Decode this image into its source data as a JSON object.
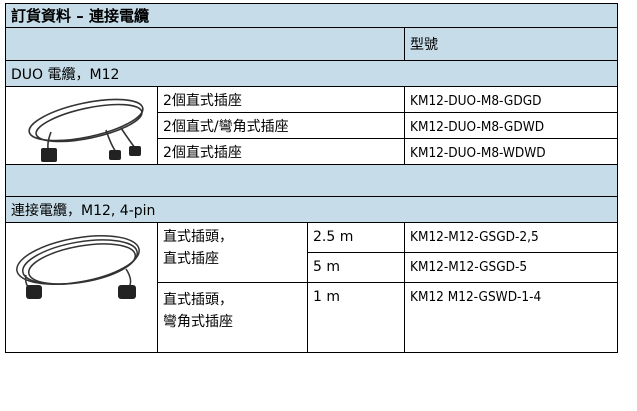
{
  "title": "訂貨資料 – 連接電纜",
  "header": {
    "part_number": "型號"
  },
  "sections": [
    {
      "title": "DUO 電纜，M12",
      "rows": [
        {
          "description": "2個直式插座",
          "part_number": "KM12-DUO-M8-GDGD"
        },
        {
          "description": "2個直式/彎角式插座",
          "part_number": "KM12-DUO-M8-GDWD"
        },
        {
          "description": "2個直式插座",
          "part_number": "KM12-DUO-M8-WDWD"
        }
      ]
    },
    {
      "title": "連接電纜，M12, 4-pin",
      "groups": [
        {
          "description": [
            "直式插頭，",
            "直式插座"
          ],
          "items": [
            {
              "length": "2.5 m",
              "part_number": "KM12-M12-GSGD-2,5"
            },
            {
              "length": "5 m",
              "part_number": "KM12-M12-GSGD-5"
            }
          ]
        },
        {
          "description": [
            "直式插頭，",
            "彎角式插座"
          ],
          "items": [
            {
              "length": "1 m",
              "part_number": "KM12 M12-GSWD-1-4"
            }
          ]
        }
      ]
    }
  ]
}
